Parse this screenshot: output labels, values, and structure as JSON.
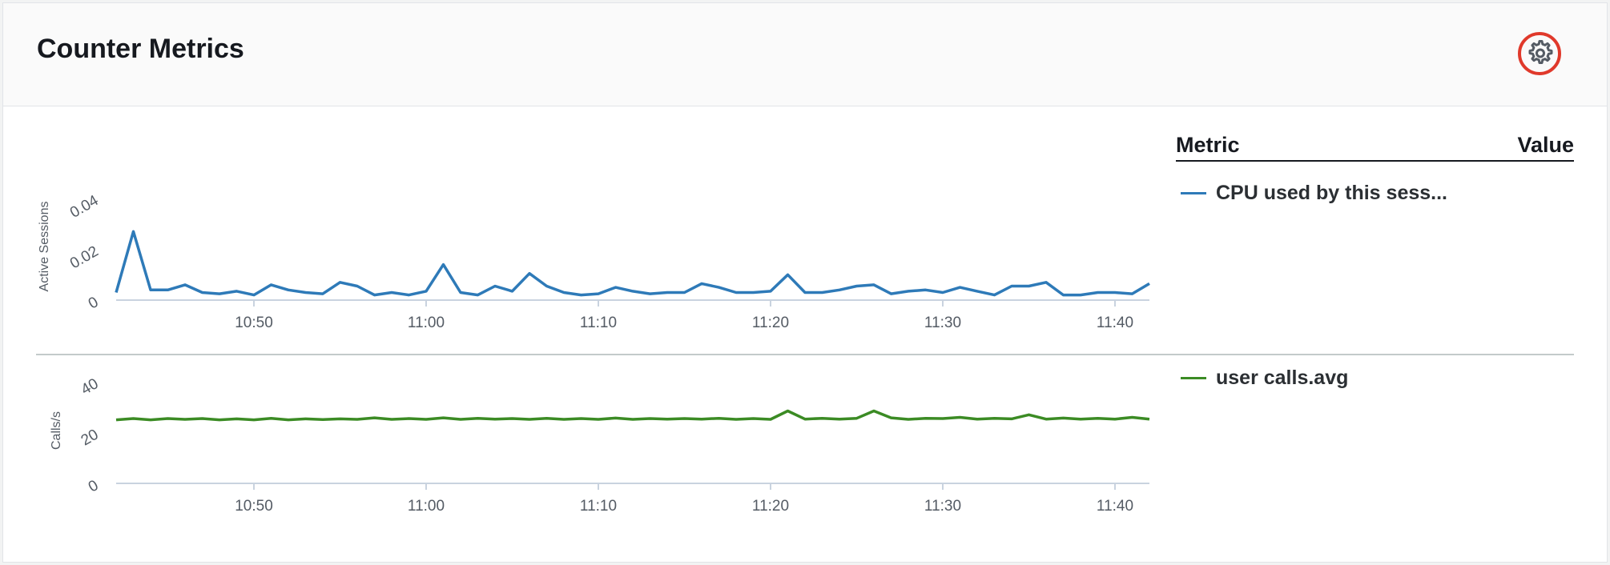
{
  "panel": {
    "title": "Counter Metrics",
    "settings_icon": "gear-icon"
  },
  "table": {
    "metric_header": "Metric",
    "value_header": "Value"
  },
  "legend": [
    {
      "label": "CPU used by this sess...",
      "color": "#2e7ab8"
    },
    {
      "label": "user calls.avg",
      "color": "#3b8b24"
    }
  ],
  "chart_data": [
    {
      "type": "line",
      "ylabel": "Active Sessions",
      "ylim": [
        0,
        0.04
      ],
      "yticks": [
        "0",
        "0.02",
        "0.04"
      ],
      "xticks": [
        "10:50",
        "11:00",
        "11:10",
        "11:20",
        "11:30",
        "11:40"
      ],
      "grid": false,
      "series": [
        {
          "color": "#2e7ab8",
          "x": [
            "10:42",
            "10:43",
            "10:44",
            "10:45",
            "10:46",
            "10:47",
            "10:48",
            "10:49",
            "10:50",
            "10:51",
            "10:52",
            "10:53",
            "10:54",
            "10:55",
            "10:56",
            "10:57",
            "10:58",
            "10:59",
            "11:00",
            "11:01",
            "11:02",
            "11:03",
            "11:04",
            "11:05",
            "11:06",
            "11:07",
            "11:08",
            "11:09",
            "11:10",
            "11:11",
            "11:12",
            "11:13",
            "11:14",
            "11:15",
            "11:16",
            "11:17",
            "11:18",
            "11:19",
            "11:20",
            "11:21",
            "11:22",
            "11:23",
            "11:24",
            "11:25",
            "11:26",
            "11:27",
            "11:28",
            "11:29",
            "11:30",
            "11:31",
            "11:32",
            "11:33",
            "11:34",
            "11:35",
            "11:36",
            "11:37",
            "11:38",
            "11:39",
            "11:40",
            "11:41",
            "11:42"
          ],
          "values": [
            0.003,
            0.027,
            0.004,
            0.004,
            0.006,
            0.003,
            0.0025,
            0.0035,
            0.002,
            0.006,
            0.004,
            0.003,
            0.0025,
            0.007,
            0.0055,
            0.002,
            0.003,
            0.002,
            0.0035,
            0.014,
            0.003,
            0.002,
            0.0055,
            0.0035,
            0.0105,
            0.0055,
            0.003,
            0.002,
            0.0025,
            0.005,
            0.0035,
            0.0025,
            0.003,
            0.003,
            0.0065,
            0.005,
            0.003,
            0.003,
            0.0035,
            0.01,
            0.003,
            0.003,
            0.004,
            0.0055,
            0.006,
            0.0025,
            0.0035,
            0.004,
            0.003,
            0.005,
            0.0035,
            0.002,
            0.0055,
            0.0055,
            0.007,
            0.002,
            0.002,
            0.003,
            0.003,
            0.0025,
            0.0065
          ]
        }
      ]
    },
    {
      "type": "line",
      "ylabel": "Calls/s",
      "ylim": [
        0,
        40
      ],
      "yticks": [
        "0",
        "20",
        "40"
      ],
      "xticks": [
        "10:50",
        "11:00",
        "11:10",
        "11:20",
        "11:30",
        "11:40"
      ],
      "grid": false,
      "series": [
        {
          "color": "#3b8b24",
          "x": [
            "10:42",
            "10:43",
            "10:44",
            "10:45",
            "10:46",
            "10:47",
            "10:48",
            "10:49",
            "10:50",
            "10:51",
            "10:52",
            "10:53",
            "10:54",
            "10:55",
            "10:56",
            "10:57",
            "10:58",
            "10:59",
            "11:00",
            "11:01",
            "11:02",
            "11:03",
            "11:04",
            "11:05",
            "11:06",
            "11:07",
            "11:08",
            "11:09",
            "11:10",
            "11:11",
            "11:12",
            "11:13",
            "11:14",
            "11:15",
            "11:16",
            "11:17",
            "11:18",
            "11:19",
            "11:20",
            "11:21",
            "11:22",
            "11:23",
            "11:24",
            "11:25",
            "11:26",
            "11:27",
            "11:28",
            "11:29",
            "11:30",
            "11:31",
            "11:32",
            "11:33",
            "11:34",
            "11:35",
            "11:36",
            "11:37",
            "11:38",
            "11:39",
            "11:40",
            "11:41",
            "11:42"
          ],
          "values": [
            25,
            25.5,
            25,
            25.5,
            25.2,
            25.5,
            25,
            25.4,
            25,
            25.6,
            25,
            25.4,
            25.1,
            25.4,
            25.2,
            25.8,
            25.2,
            25.5,
            25.2,
            25.8,
            25.2,
            25.6,
            25.3,
            25.5,
            25.2,
            25.6,
            25.2,
            25.5,
            25.2,
            25.7,
            25.2,
            25.5,
            25.3,
            25.5,
            25.3,
            25.6,
            25.2,
            25.5,
            25.2,
            28.5,
            25.3,
            25.6,
            25.3,
            25.6,
            28.5,
            25.8,
            25.2,
            25.6,
            25.5,
            26,
            25.3,
            25.6,
            25.4,
            27,
            25.3,
            25.7,
            25.3,
            25.6,
            25.3,
            26,
            25.3
          ]
        }
      ]
    }
  ]
}
